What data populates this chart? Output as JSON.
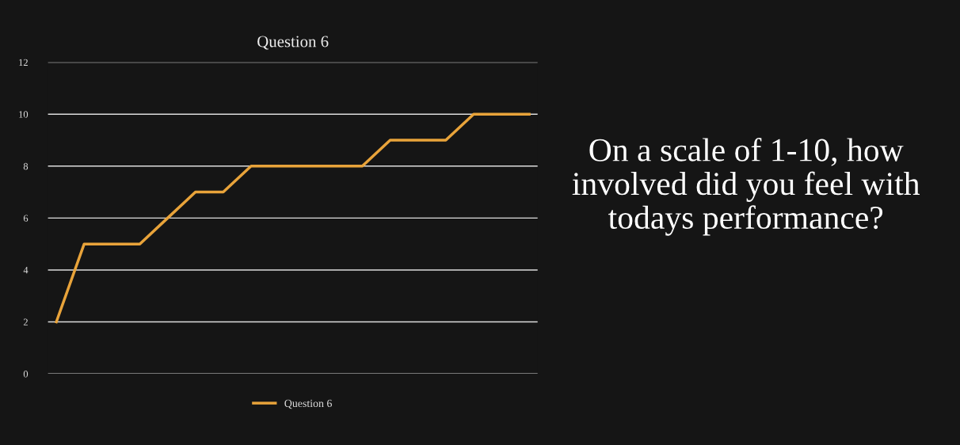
{
  "chart_data": {
    "type": "line",
    "title": "Question 6",
    "categories": [
      null,
      null,
      null,
      null,
      null,
      null,
      null,
      null,
      null,
      null,
      null,
      null,
      null,
      null,
      null,
      null,
      null,
      null
    ],
    "series": [
      {
        "name": "Question 6",
        "color": "#e8a33a",
        "values": [
          2,
          5,
          5,
          5,
          6,
          7,
          7,
          8,
          8,
          8,
          8,
          8,
          9,
          9,
          9,
          10,
          10,
          10
        ]
      }
    ],
    "ylim": [
      0,
      12
    ],
    "yticks": [
      0,
      2,
      4,
      6,
      8,
      10,
      12
    ],
    "grid": "y",
    "legend": "bottom",
    "marker": "none",
    "line_style": "solid",
    "annotations": [
      "On a scale of 1-10, how involved did you feel with todays performance?"
    ]
  }
}
